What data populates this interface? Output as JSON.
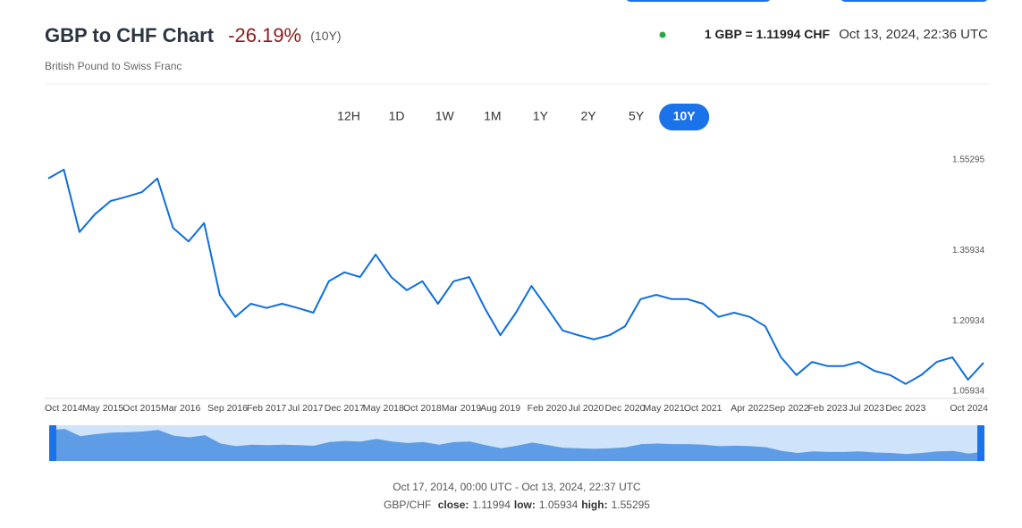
{
  "header": {
    "title": "GBP to CHF Chart",
    "change": "-26.19%",
    "period": "(10Y)",
    "subtitle": "British Pound to Swiss Franc",
    "rate": "1 GBP = 1.11994 CHF",
    "time": "Oct 13, 2024, 22:36 UTC"
  },
  "ranges": {
    "options": [
      "12H",
      "1D",
      "1W",
      "1M",
      "1Y",
      "2Y",
      "5Y",
      "10Y"
    ],
    "active": 7
  },
  "chart_data": {
    "type": "line",
    "color": "#0f6fdc",
    "navigator": true,
    "grid": false,
    "x": [
      "2014-10",
      "2014-12",
      "2015-02",
      "2015-04",
      "2015-06",
      "2015-08",
      "2015-10",
      "2015-12",
      "2016-02",
      "2016-04",
      "2016-06",
      "2016-08",
      "2016-10",
      "2016-12",
      "2017-02",
      "2017-04",
      "2017-06",
      "2017-08",
      "2017-10",
      "2017-12",
      "2018-02",
      "2018-04",
      "2018-06",
      "2018-08",
      "2018-10",
      "2018-12",
      "2019-02",
      "2019-04",
      "2019-06",
      "2019-08",
      "2019-10",
      "2019-12",
      "2020-02",
      "2020-04",
      "2020-06",
      "2020-08",
      "2020-10",
      "2020-12",
      "2021-02",
      "2021-04",
      "2021-06",
      "2021-08",
      "2021-10",
      "2021-12",
      "2022-02",
      "2022-04",
      "2022-06",
      "2022-08",
      "2022-10",
      "2022-12",
      "2023-02",
      "2023-04",
      "2023-06",
      "2023-08",
      "2023-10",
      "2023-12",
      "2024-02",
      "2024-04",
      "2024-06",
      "2024-08",
      "2024-10"
    ],
    "values": [
      1.513,
      1.532,
      1.399,
      1.437,
      1.465,
      1.474,
      1.484,
      1.513,
      1.408,
      1.379,
      1.418,
      1.265,
      1.218,
      1.246,
      1.237,
      1.246,
      1.237,
      1.227,
      1.294,
      1.313,
      1.303,
      1.351,
      1.303,
      1.275,
      1.294,
      1.246,
      1.294,
      1.303,
      1.237,
      1.179,
      1.227,
      1.284,
      1.237,
      1.189,
      1.179,
      1.17,
      1.179,
      1.198,
      1.256,
      1.265,
      1.256,
      1.256,
      1.246,
      1.218,
      1.227,
      1.218,
      1.198,
      1.132,
      1.094,
      1.122,
      1.113,
      1.113,
      1.122,
      1.103,
      1.094,
      1.075,
      1.094,
      1.122,
      1.132,
      1.084,
      1.12
    ],
    "xlim": [
      "2014-10",
      "2024-10"
    ],
    "xticks": [
      {
        "value": "2014-10",
        "label": "Oct 2014"
      },
      {
        "value": "2015-05",
        "label": "May 2015"
      },
      {
        "value": "2015-10",
        "label": "Oct 2015"
      },
      {
        "value": "2016-03",
        "label": "Mar 2016"
      },
      {
        "value": "2016-09",
        "label": "Sep 2016"
      },
      {
        "value": "2017-02",
        "label": "Feb 2017"
      },
      {
        "value": "2017-07",
        "label": "Jul 2017"
      },
      {
        "value": "2017-12",
        "label": "Dec 2017"
      },
      {
        "value": "2018-05",
        "label": "May 2018"
      },
      {
        "value": "2018-10",
        "label": "Oct 2018"
      },
      {
        "value": "2019-03",
        "label": "Mar 2019"
      },
      {
        "value": "2019-08",
        "label": "Aug 2019"
      },
      {
        "value": "2020-02",
        "label": "Feb 2020"
      },
      {
        "value": "2020-07",
        "label": "Jul 2020"
      },
      {
        "value": "2020-12",
        "label": "Dec 2020"
      },
      {
        "value": "2021-05",
        "label": "May 2021"
      },
      {
        "value": "2021-10",
        "label": "Oct 2021"
      },
      {
        "value": "2022-04",
        "label": "Apr 2022"
      },
      {
        "value": "2022-09",
        "label": "Sep 2022"
      },
      {
        "value": "2023-02",
        "label": "Feb 2023"
      },
      {
        "value": "2023-07",
        "label": "Jul 2023"
      },
      {
        "value": "2023-12",
        "label": "Dec 2023"
      },
      {
        "value": "2024-10",
        "label": "Oct 2024"
      }
    ],
    "ylim": [
      1.046,
      1.566
    ],
    "yticks": [
      1.05934,
      1.20934,
      1.35934,
      1.55295
    ]
  },
  "footer": {
    "range": "Oct 17, 2014, 00:00 UTC - Oct 13, 2024, 22:37 UTC",
    "pair": "GBP/CHF",
    "stats": [
      {
        "label": "close:",
        "value": "1.11994"
      },
      {
        "label": "low:",
        "value": "1.05934"
      },
      {
        "label": "high:",
        "value": "1.55295"
      }
    ]
  }
}
